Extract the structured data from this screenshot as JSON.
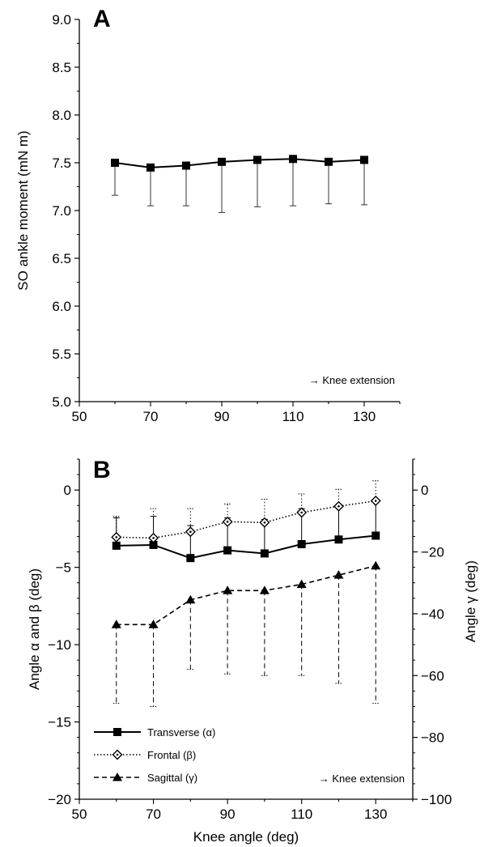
{
  "chart_data": [
    {
      "panel_label": "A",
      "type": "line",
      "x": [
        60,
        70,
        80,
        90,
        100,
        110,
        120,
        130
      ],
      "series": [
        {
          "values": [
            7.5,
            7.45,
            7.47,
            7.51,
            7.53,
            7.54,
            7.51,
            7.53
          ],
          "error_lower": [
            7.16,
            7.05,
            7.05,
            6.98,
            7.04,
            7.05,
            7.07,
            7.06
          ],
          "marker": "square-filled",
          "line_style": "solid",
          "color": "#000000"
        }
      ],
      "xlabel": "",
      "ylabel": "SO ankle moment (mN m)",
      "xlim": [
        50,
        140
      ],
      "ylim": [
        5.0,
        9.0
      ],
      "xticks": [
        "50",
        "70",
        "90",
        "110",
        "130"
      ],
      "yticks": [
        "5.0",
        "5.5",
        "6.0",
        "6.5",
        "7.0",
        "7.5",
        "8.0",
        "8.5",
        "9.0"
      ],
      "annotation": "→ Knee extension",
      "grid": false
    },
    {
      "panel_label": "B",
      "type": "line",
      "x": [
        60,
        70,
        80,
        90,
        100,
        110,
        120,
        130
      ],
      "series": [
        {
          "name": "Transverse (α)",
          "axis": "left",
          "values": [
            -3.6,
            -3.55,
            -4.4,
            -3.9,
            -4.1,
            -3.5,
            -3.2,
            -2.95
          ],
          "error_upper": [
            -1.8,
            -1.7,
            -2.3,
            -1.8,
            -1.9,
            -1.2,
            -1.0,
            -0.7
          ],
          "marker": "square-filled",
          "line_style": "solid"
        },
        {
          "name": "Frontal (β)",
          "axis": "left",
          "values": [
            -3.05,
            -3.1,
            -2.7,
            -2.05,
            -2.1,
            -1.45,
            -1.05,
            -0.7
          ],
          "error_upper": [
            -1.7,
            -1.2,
            -1.2,
            -0.9,
            -0.6,
            -0.25,
            0.05,
            0.6
          ],
          "marker": "diamond-open",
          "line_style": "dotted"
        },
        {
          "name": "Sagittal (γ)",
          "axis": "right",
          "values": [
            -43.5,
            -43.5,
            -35.5,
            -32.5,
            -32.5,
            -30.5,
            -27.5,
            -24.5
          ],
          "error_lower": [
            -69,
            -70,
            -58,
            -59.5,
            -60,
            -60,
            -62.5,
            -69
          ],
          "marker": "triangle-filled",
          "line_style": "dashed"
        }
      ],
      "xlabel": "Knee angle (deg)",
      "ylabel": "Angle α and β (deg)",
      "ylabel_right": "Angle γ (deg)",
      "xlim": [
        50,
        140
      ],
      "ylim": [
        -20,
        2
      ],
      "ylim_right": [
        -100,
        10
      ],
      "xticks": [
        "50",
        "70",
        "90",
        "110",
        "130"
      ],
      "yticks": [
        "-20",
        "-15",
        "-10",
        "-5",
        "0"
      ],
      "yticks_right": [
        "-100",
        "-80",
        "-60",
        "-40",
        "-20",
        "0"
      ],
      "legend_position": "bottom-left",
      "annotation": "→ Knee extension",
      "grid": false
    }
  ]
}
